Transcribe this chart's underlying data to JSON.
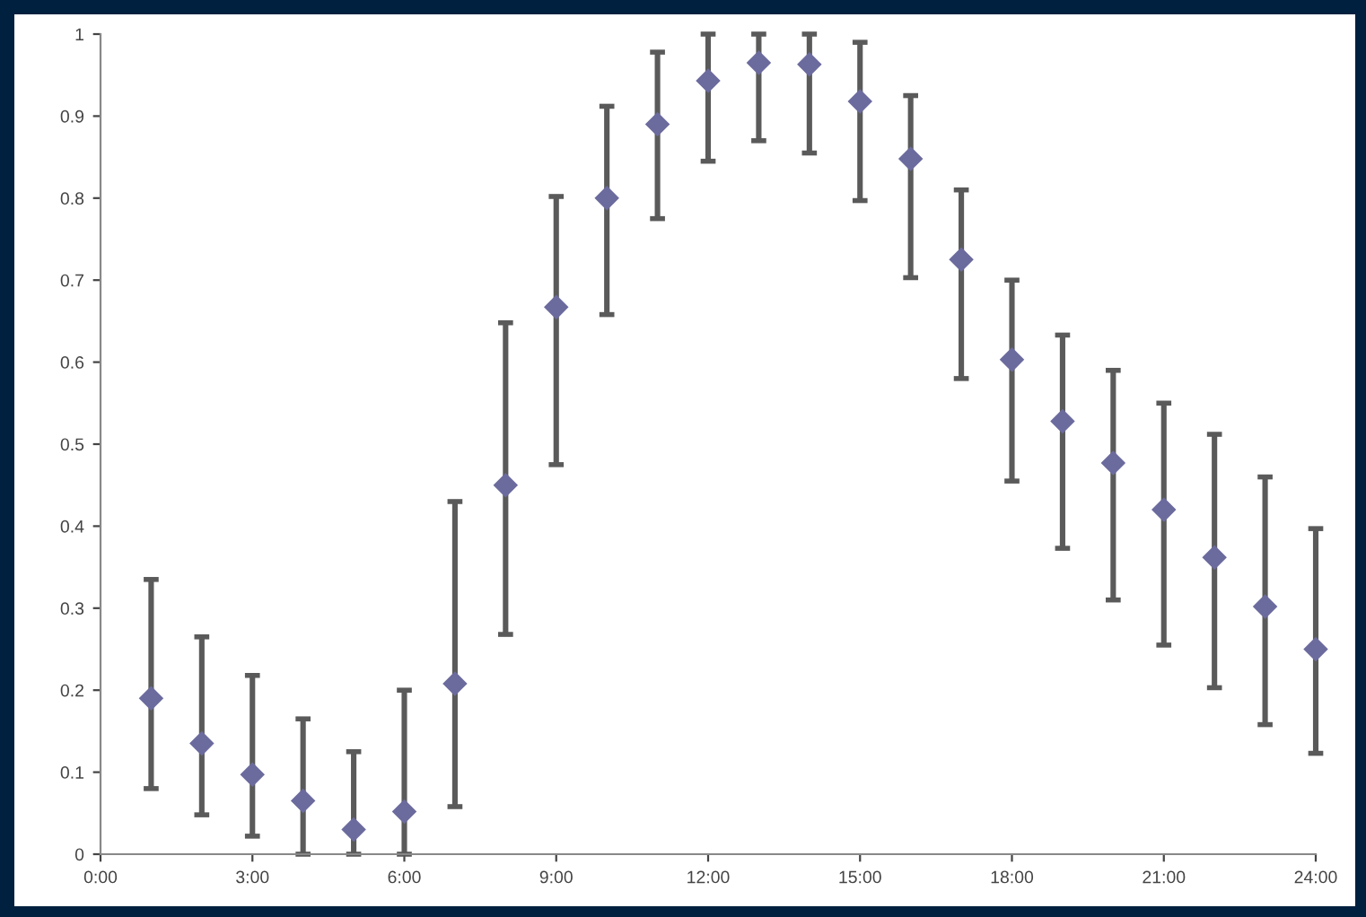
{
  "chart_data": {
    "type": "scatter",
    "marker": "diamond",
    "grid": false,
    "x": [
      1,
      2,
      3,
      4,
      5,
      6,
      7,
      8,
      9,
      10,
      11,
      12,
      13,
      14,
      15,
      16,
      17,
      18,
      19,
      20,
      21,
      22,
      23,
      24
    ],
    "series": [
      {
        "color": "#6b6b9e",
        "values": [
          0.19,
          0.135,
          0.097,
          0.065,
          0.03,
          0.052,
          0.208,
          0.45,
          0.667,
          0.8,
          0.89,
          0.943,
          0.965,
          0.963,
          0.918,
          0.848,
          0.725,
          0.603,
          0.528,
          0.477,
          0.42,
          0.362,
          0.302,
          0.25
        ],
        "errors": [
          [
            0.08,
            0.335
          ],
          [
            0.048,
            0.265
          ],
          [
            0.022,
            0.218
          ],
          [
            0,
            0.165
          ],
          [
            0,
            0.125
          ],
          [
            0,
            0.2
          ],
          [
            0.058,
            0.43
          ],
          [
            0.268,
            0.648
          ],
          [
            0.475,
            0.802
          ],
          [
            0.658,
            0.912
          ],
          [
            0.775,
            0.978
          ],
          [
            0.845,
            1.0
          ],
          [
            0.87,
            1.0
          ],
          [
            0.855,
            1.0
          ],
          [
            0.797,
            0.99
          ],
          [
            0.703,
            0.925
          ],
          [
            0.58,
            0.81
          ],
          [
            0.455,
            0.7
          ],
          [
            0.373,
            0.633
          ],
          [
            0.31,
            0.59
          ],
          [
            0.255,
            0.55
          ],
          [
            0.203,
            0.512
          ],
          [
            0.158,
            0.46
          ],
          [
            0.123,
            0.397
          ]
        ]
      }
    ],
    "xlim": [
      0,
      24
    ],
    "xticks": [
      {
        "value": 0,
        "label": "0:00"
      },
      {
        "value": 3,
        "label": "3:00"
      },
      {
        "value": 6,
        "label": "6:00"
      },
      {
        "value": 9,
        "label": "9:00"
      },
      {
        "value": 12,
        "label": "12:00"
      },
      {
        "value": 15,
        "label": "15:00"
      },
      {
        "value": 18,
        "label": "18:00"
      },
      {
        "value": 21,
        "label": "21:00"
      },
      {
        "value": 24,
        "label": "24:00"
      }
    ],
    "ylim": [
      0,
      1
    ],
    "yticks": [
      0,
      0.1,
      0.2,
      0.3,
      0.4,
      0.5,
      0.6,
      0.7,
      0.8,
      0.9,
      1
    ]
  }
}
